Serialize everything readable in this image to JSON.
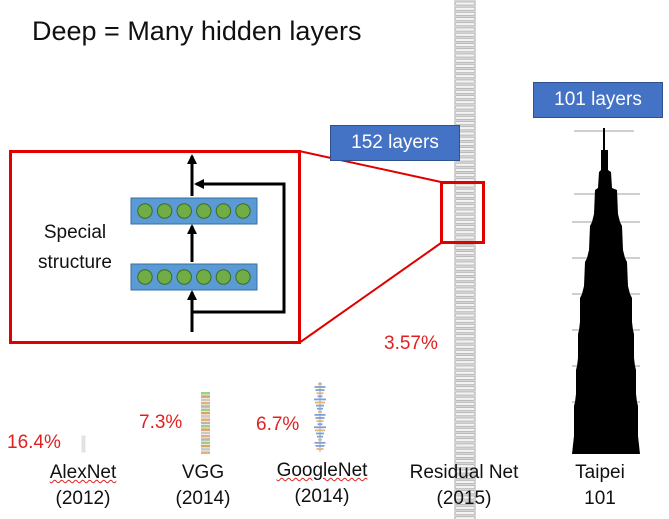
{
  "title": "Deep = Many hidden layers",
  "special_structure": {
    "line1": "Special",
    "line2": "structure"
  },
  "badges": {
    "resnet": "152 layers",
    "taipei": "101 layers"
  },
  "networks": [
    {
      "name": "AlexNet",
      "year": "(2012)",
      "error": "16.4%"
    },
    {
      "name": "VGG",
      "year": "(2014)",
      "error": "7.3%"
    },
    {
      "name": "GoogleNet",
      "year": "(2014)",
      "error": "6.7%"
    },
    {
      "name": "Residual Net",
      "year": "(2015)",
      "error": "3.57%"
    },
    {
      "name": "Taipei",
      "year": "101",
      "error": ""
    }
  ],
  "colors": {
    "accent_red": "#e02020",
    "badge_blue": "#4472c4",
    "node_green": "#70ad47",
    "layer_blue": "#5b9bd5"
  }
}
